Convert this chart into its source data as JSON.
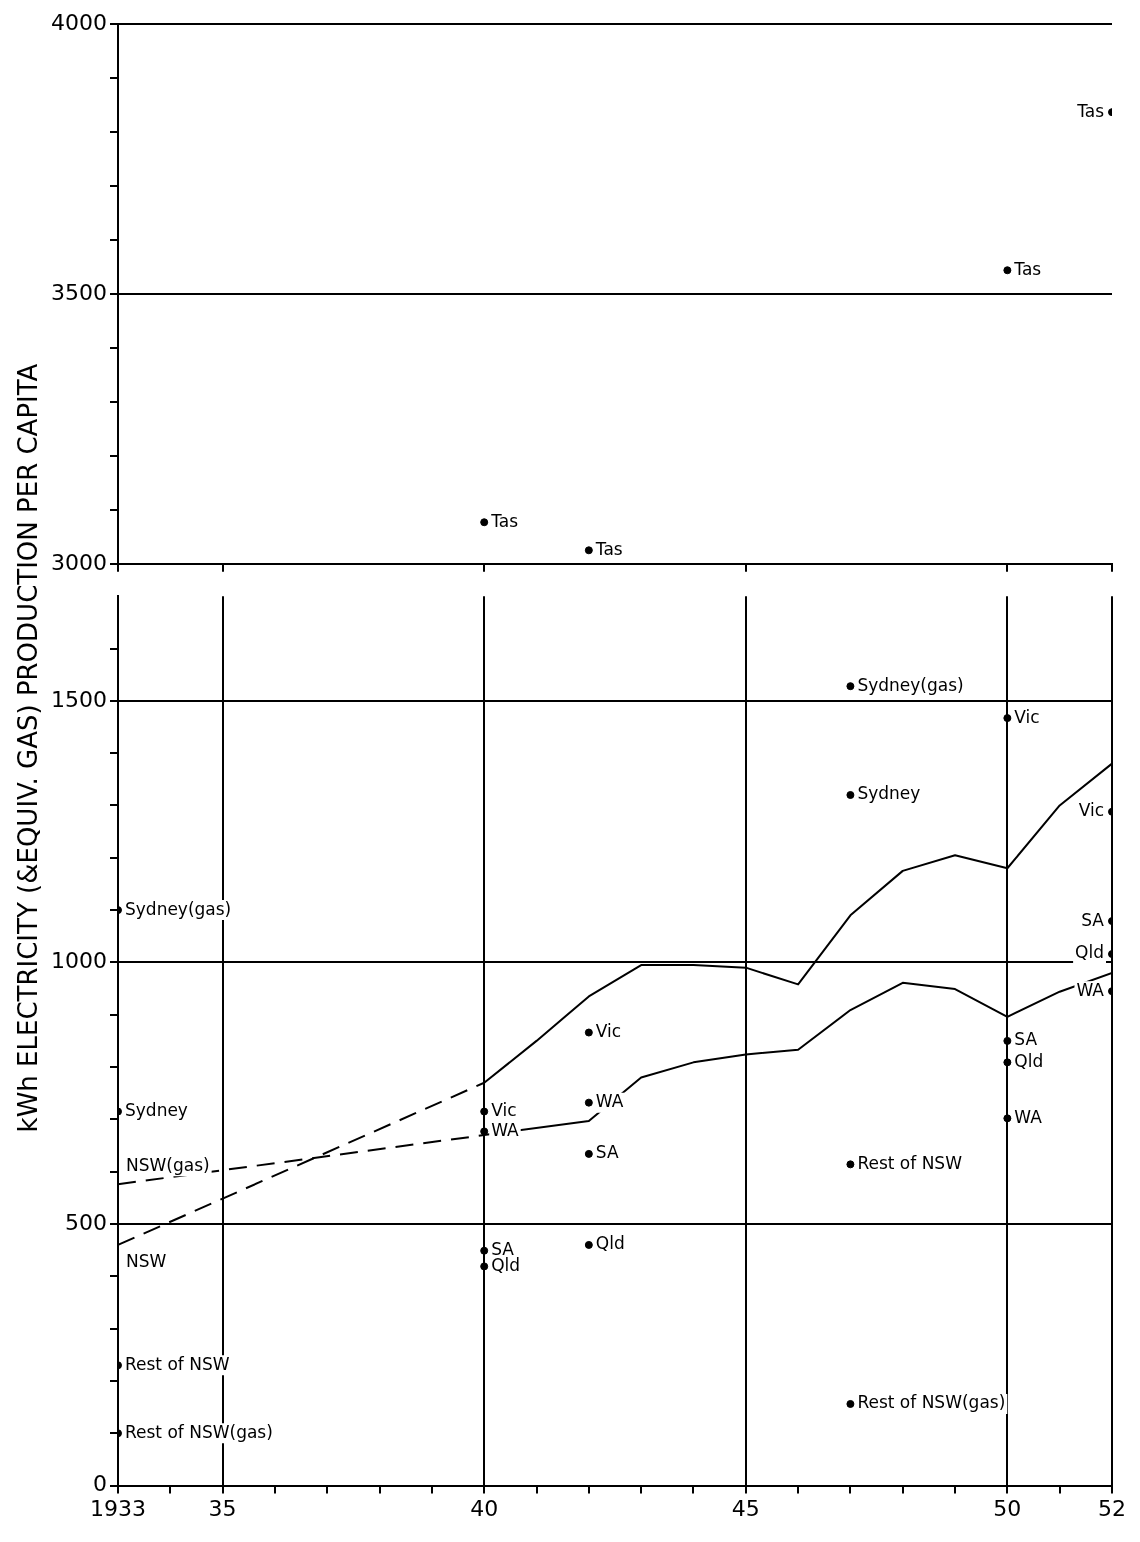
{
  "chart_data": [
    {
      "type": "scatter",
      "ylabel": "kWh ELECTRICITY (&EQUIV. GAS) PRODUCTION PER CAPITA",
      "xlim": [
        1933,
        1952
      ],
      "ylim": [
        3000,
        4000
      ],
      "xticks": [
        {
          "value": 1933,
          "label": null
        },
        {
          "value": 1935,
          "label": null
        },
        {
          "value": 1940,
          "label": null
        },
        {
          "value": 1945,
          "label": null
        },
        {
          "value": 1950,
          "label": null
        },
        {
          "value": 1952,
          "label": null
        }
      ],
      "yticks": [
        3000,
        {
          "value": 3100,
          "label": null
        },
        {
          "value": 3200,
          "label": null
        },
        {
          "value": 3300,
          "label": null
        },
        {
          "value": 3400,
          "label": null
        },
        3500,
        {
          "value": 3600,
          "label": null
        },
        {
          "value": 3700,
          "label": null
        },
        {
          "value": 3800,
          "label": null
        },
        {
          "value": 3900,
          "label": null
        },
        4000
      ],
      "tick_labels": "y",
      "grid": true,
      "marker": "circle",
      "series": [
        {
          "name": "Tas",
          "color": "#000000",
          "x": [
            1940,
            1942,
            1950,
            1952
          ],
          "values": [
            3077,
            3025,
            3544,
            3837
          ]
        }
      ]
    },
    {
      "type": "scatter",
      "xlim": [
        1933,
        1952
      ],
      "ylim": [
        0,
        1700
      ],
      "xticks": [
        {
          "value": 1933,
          "label": "1933"
        },
        {
          "value": 1934,
          "label": null
        },
        {
          "value": 1935,
          "label": "35"
        },
        {
          "value": 1936,
          "label": null
        },
        {
          "value": 1937,
          "label": null
        },
        {
          "value": 1938,
          "label": null
        },
        {
          "value": 1939,
          "label": null
        },
        {
          "value": 1940,
          "label": "40"
        },
        {
          "value": 1941,
          "label": null
        },
        {
          "value": 1942,
          "label": null
        },
        {
          "value": 1943,
          "label": null
        },
        {
          "value": 1944,
          "label": null
        },
        {
          "value": 1945,
          "label": "45"
        },
        {
          "value": 1946,
          "label": null
        },
        {
          "value": 1947,
          "label": null
        },
        {
          "value": 1948,
          "label": null
        },
        {
          "value": 1949,
          "label": null
        },
        {
          "value": 1950,
          "label": "50"
        },
        {
          "value": 1951,
          "label": null
        },
        {
          "value": 1952,
          "label": "52"
        }
      ],
      "yticks": [
        0,
        {
          "value": 100,
          "label": null
        },
        {
          "value": 200,
          "label": null
        },
        {
          "value": 300,
          "label": null
        },
        {
          "value": 400,
          "label": null
        },
        500,
        {
          "value": 600,
          "label": null
        },
        {
          "value": 700,
          "label": null
        },
        {
          "value": 800,
          "label": null
        },
        {
          "value": 900,
          "label": null
        },
        1000,
        {
          "value": 1100,
          "label": null
        },
        {
          "value": 1200,
          "label": null
        },
        {
          "value": 1300,
          "label": null
        },
        {
          "value": 1400,
          "label": null
        },
        1500,
        {
          "value": 1600,
          "label": null
        }
      ],
      "grid": true,
      "marker": "circle",
      "series": [
        {
          "name": "NSW",
          "type": "line",
          "line_style": "dashed",
          "marker": "none",
          "color": "#000000",
          "x": [
            1933,
            1940
          ],
          "values": [
            460,
            770
          ]
        },
        {
          "type": "line",
          "line_style": "solid",
          "marker": "none",
          "color": "#000000",
          "x": [
            1940,
            1941,
            1942,
            1943,
            1944,
            1945,
            1946,
            1947,
            1948,
            1949,
            1950,
            1951,
            1952
          ],
          "values": [
            770,
            850,
            935,
            995,
            995,
            990,
            958,
            1090,
            1175,
            1205,
            1180,
            1300,
            1380
          ]
        },
        {
          "name": "NSW(gas)",
          "type": "line",
          "line_style": "dashed",
          "marker": "none",
          "color": "#000000",
          "x": [
            1933,
            1940
          ],
          "values": [
            576,
            670
          ]
        },
        {
          "type": "line",
          "line_style": "solid",
          "marker": "none",
          "color": "#000000",
          "x": [
            1940,
            1942,
            1943,
            1944,
            1945,
            1946,
            1947,
            1948,
            1949,
            1950,
            1951,
            1952
          ],
          "values": [
            670,
            697,
            780,
            809,
            824,
            833,
            909,
            961,
            949,
            896,
            944,
            980
          ]
        },
        {
          "name": "Sydney(gas)",
          "color": "#000000",
          "x": [
            1933,
            1947
          ],
          "values": [
            1100,
            1528
          ]
        },
        {
          "name": "Sydney",
          "color": "#000000",
          "x": [
            1933,
            1947
          ],
          "values": [
            715,
            1320
          ]
        },
        {
          "name": "Rest of NSW",
          "color": "#000000",
          "x": [
            1933,
            1947
          ],
          "values": [
            230,
            614
          ]
        },
        {
          "name": "Rest of NSW(gas)",
          "color": "#000000",
          "x": [
            1933,
            1947
          ],
          "values": [
            100,
            156
          ]
        },
        {
          "name": "Vic",
          "color": "#000000",
          "x": [
            1940,
            1942,
            1950,
            1952
          ],
          "values": [
            715,
            866,
            1467,
            1288
          ]
        },
        {
          "name": "WA",
          "color": "#000000",
          "x": [
            1940,
            1942,
            1950,
            1952
          ],
          "values": [
            677,
            732,
            702,
            945
          ]
        },
        {
          "name": "SA",
          "color": "#000000",
          "x": [
            1940,
            1942,
            1950,
            1952
          ],
          "values": [
            449,
            634,
            850,
            1079
          ]
        },
        {
          "name": "Qld",
          "color": "#000000",
          "x": [
            1940,
            1942,
            1950,
            1952
          ],
          "values": [
            419,
            460,
            809,
            1016
          ]
        }
      ]
    }
  ]
}
